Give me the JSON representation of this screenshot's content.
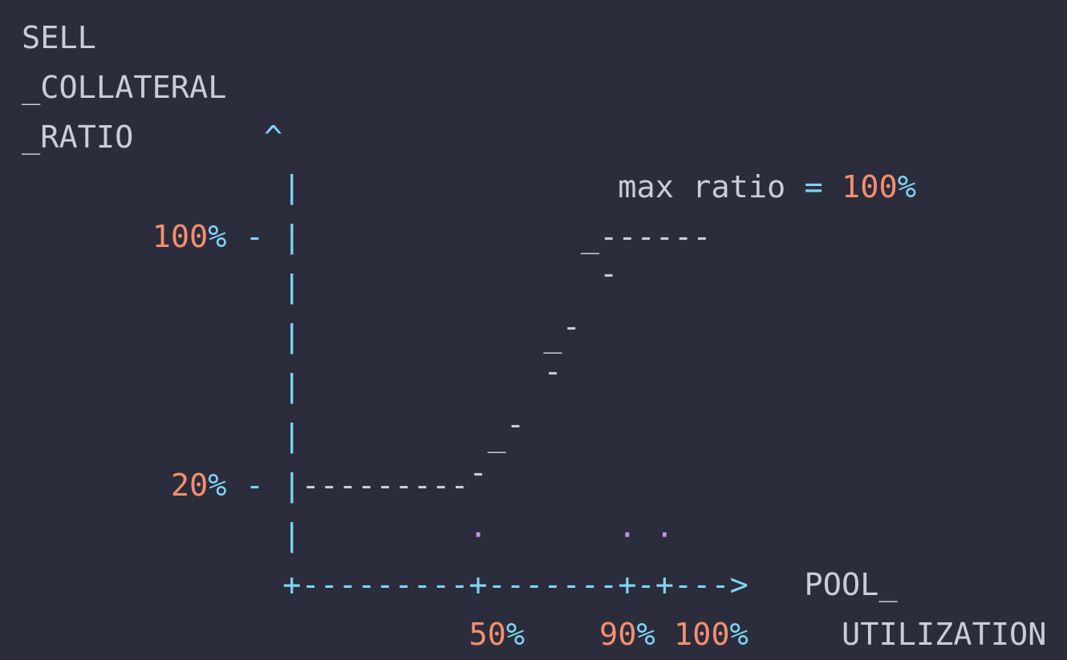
{
  "diagram": {
    "y_axis_label_lines": [
      "SELL",
      "_COLLATERAL",
      "_RATIO"
    ],
    "x_axis_label_lines": [
      "POOL_",
      "UTILIZATION"
    ],
    "annotation": {
      "text": "max ratio",
      "equals": "=",
      "value_number": "100",
      "value_percent": "%"
    },
    "y_ticks": [
      {
        "number": "100",
        "percent": "%"
      },
      {
        "number": "20",
        "percent": "%"
      }
    ],
    "x_ticks": [
      {
        "number": "50",
        "percent": "%"
      },
      {
        "number": "90",
        "percent": "%"
      },
      {
        "number": "100",
        "percent": "%"
      }
    ]
  },
  "colors": {
    "background": "#2b2d3c",
    "text": "#c8cdd8",
    "operator": "#7fd3f4",
    "number": "#f58e6f",
    "dot": "#c593e8"
  }
}
